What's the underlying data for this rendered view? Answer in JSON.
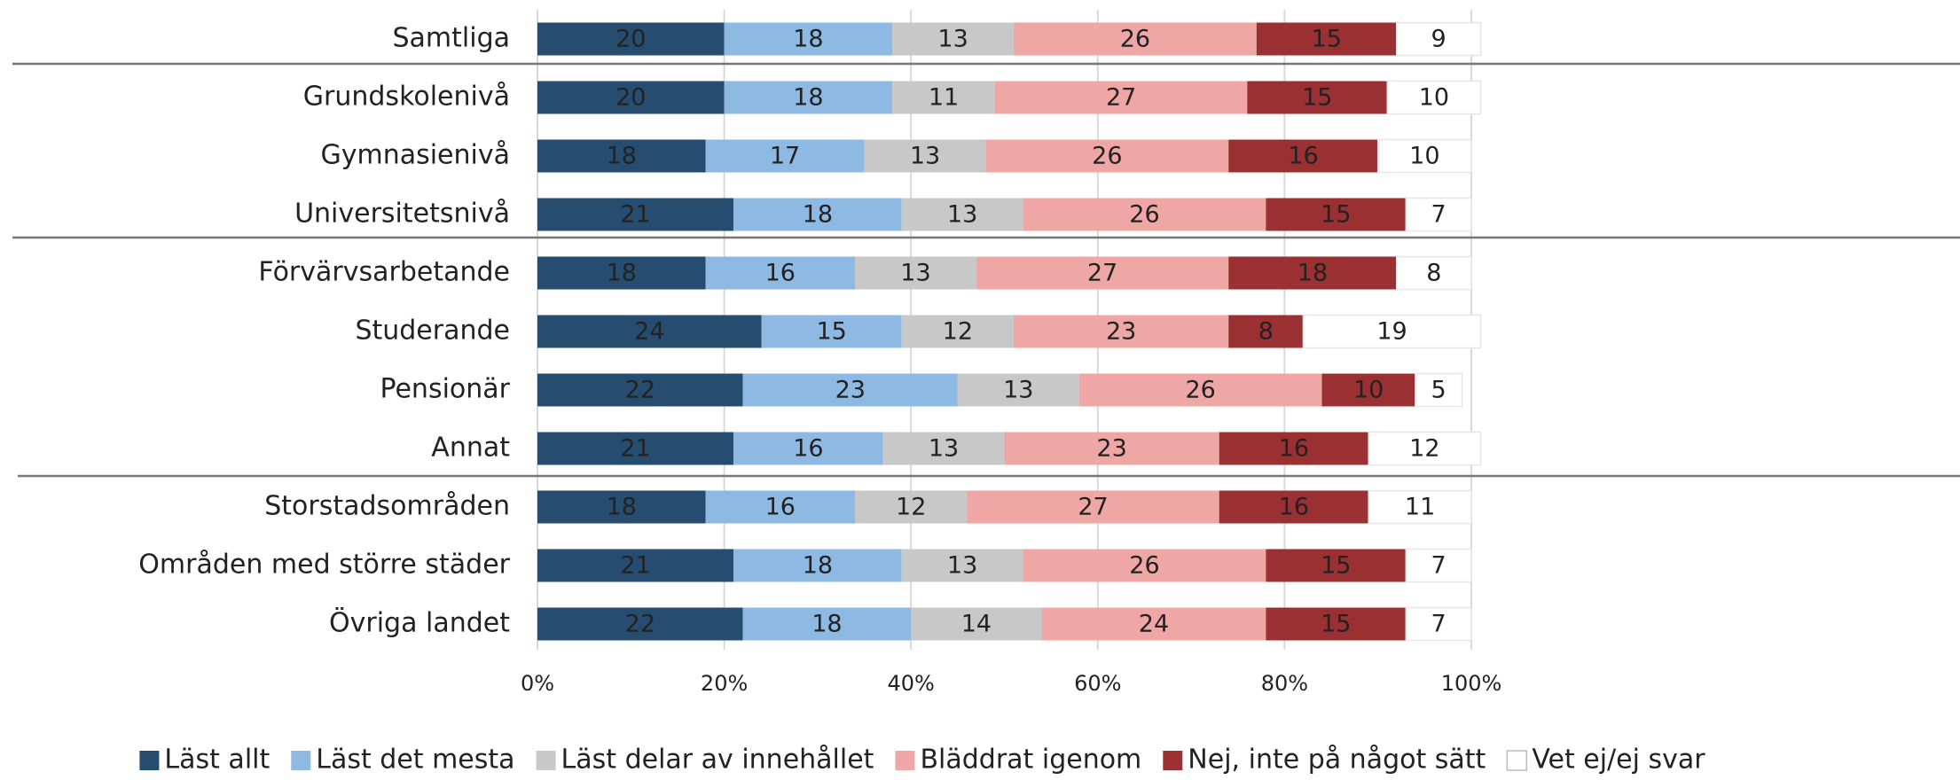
{
  "chart_data": {
    "type": "bar",
    "orientation": "horizontal",
    "stacked": true,
    "categories": [
      "Samtliga",
      "Grundskolenivå",
      "Gymnasienivå",
      "Universitetsnivå",
      "Förvärvsarbetande",
      "Studerande",
      "Pensionär",
      "Annat",
      "Storstadsområden",
      "Områden med större städer",
      "Övriga landet"
    ],
    "series": [
      {
        "name": "Läst allt",
        "color": "#264d70",
        "values": [
          20,
          20,
          18,
          21,
          18,
          24,
          22,
          21,
          18,
          21,
          22
        ]
      },
      {
        "name": "Läst det mesta",
        "color": "#8db9e3",
        "values": [
          18,
          18,
          17,
          18,
          16,
          15,
          23,
          16,
          16,
          18,
          18
        ]
      },
      {
        "name": "Läst delar av innehållet",
        "color": "#c8c8c8",
        "values": [
          13,
          11,
          13,
          13,
          13,
          12,
          13,
          13,
          12,
          13,
          14
        ]
      },
      {
        "name": "Bläddrat igenom",
        "color": "#efa7a6",
        "values": [
          26,
          27,
          26,
          26,
          27,
          23,
          26,
          23,
          27,
          26,
          24
        ]
      },
      {
        "name": "Nej, inte på något sätt",
        "color": "#9b3033",
        "values": [
          15,
          15,
          16,
          15,
          18,
          8,
          10,
          16,
          16,
          15,
          15
        ]
      },
      {
        "name": "Vet ej/ej svar",
        "color": "#ffffff",
        "values": [
          9,
          10,
          10,
          7,
          8,
          19,
          5,
          12,
          11,
          7,
          7
        ]
      }
    ],
    "xlim": [
      0,
      100
    ],
    "xticks": [
      {
        "value": 0,
        "label": "0%"
      },
      {
        "value": 20,
        "label": "20%"
      },
      {
        "value": 40,
        "label": "40%"
      },
      {
        "value": 60,
        "label": "60%"
      },
      {
        "value": 80,
        "label": "80%"
      },
      {
        "value": 100,
        "label": "100%"
      }
    ],
    "grid": true,
    "legend": "bottom"
  }
}
